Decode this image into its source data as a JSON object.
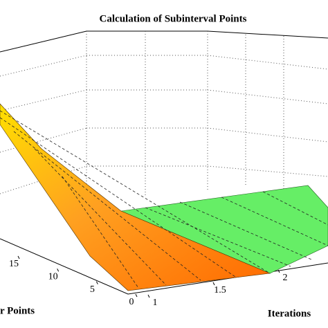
{
  "chart_data": {
    "type": "surface",
    "title": "Calculation of Subinterval Points",
    "xlabel": "Iterations",
    "ylabel": "r Points",
    "xticks": [
      1,
      {
        "value": 1.5,
        "label": "1.5"
      },
      2
    ],
    "yticks": [
      0,
      5,
      10,
      15
    ],
    "grid": true
  }
}
